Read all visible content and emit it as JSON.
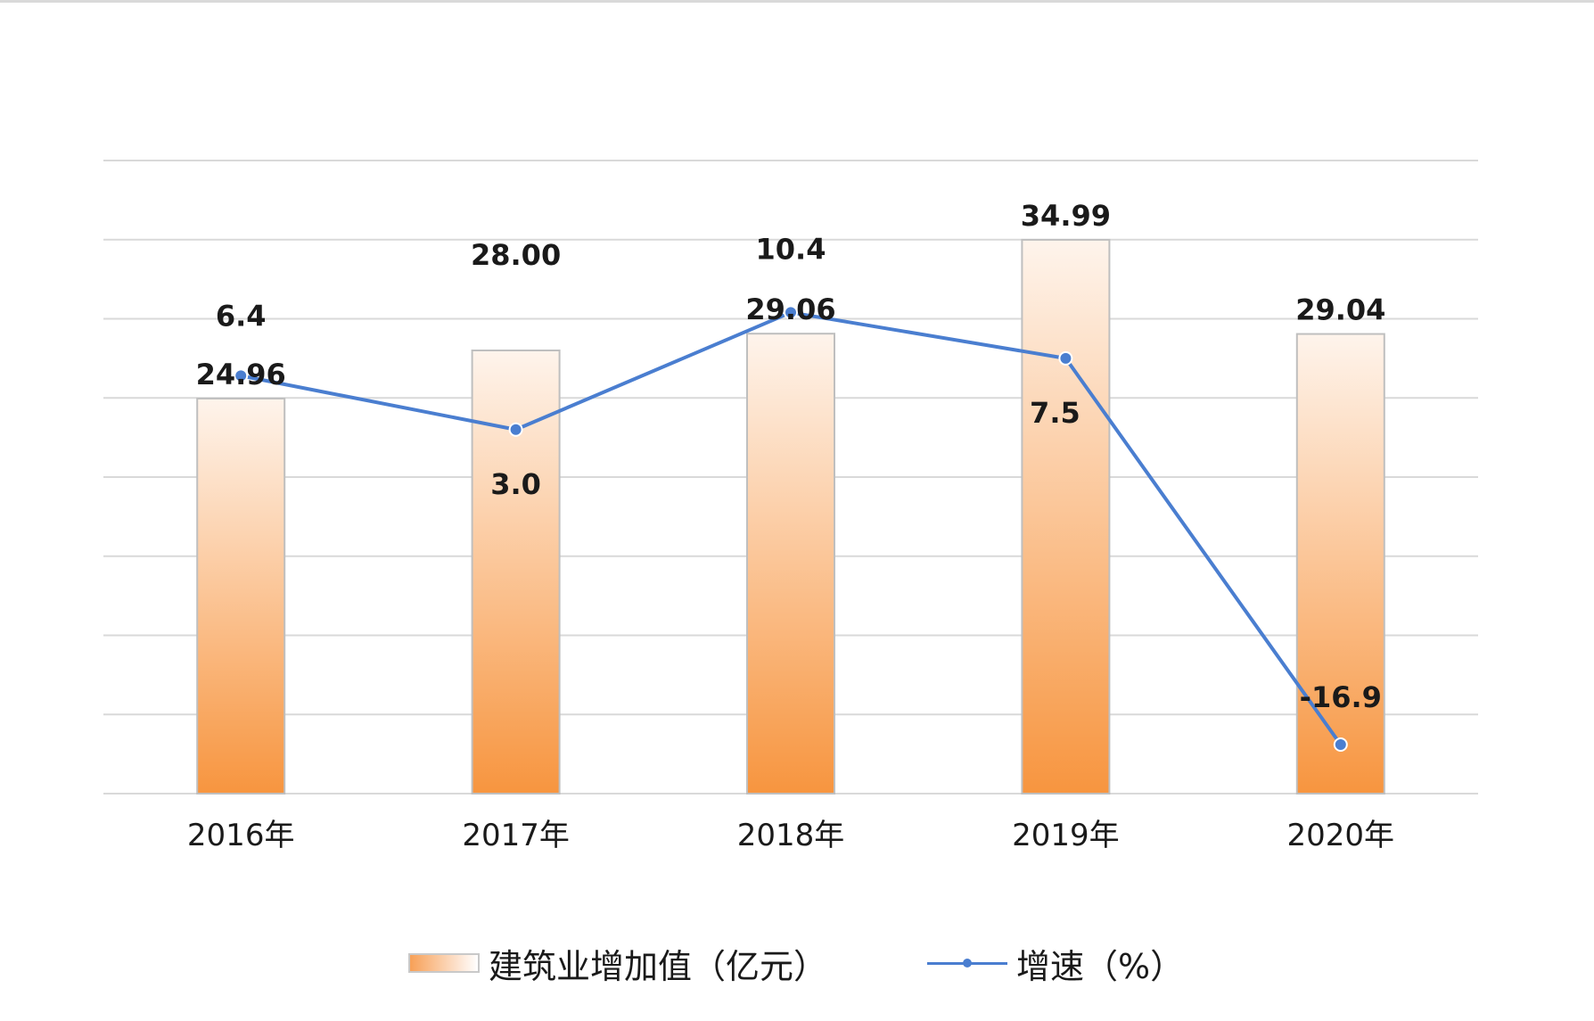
{
  "chart_data": {
    "type": "bar",
    "categories": [
      "2016年",
      "2017年",
      "2018年",
      "2019年",
      "2020年"
    ],
    "series": [
      {
        "name": "建筑业增加值（亿元）",
        "type": "bar",
        "values": [
          24.96,
          28.0,
          29.06,
          34.99,
          29.04
        ],
        "labels": [
          "24.96",
          "28.00",
          "29.06",
          "34.99",
          "29.04"
        ],
        "color": "#f7a057"
      },
      {
        "name": "增速（%）",
        "type": "line",
        "values": [
          6.4,
          3.0,
          10.4,
          7.5,
          -16.9
        ],
        "labels": [
          "6.4",
          "3.0",
          "10.4",
          "7.5",
          "-16.9"
        ],
        "color": "#4a7ed0"
      }
    ],
    "title": "",
    "xlabel": "",
    "ylabel": "",
    "ylim_bar": [
      0,
      40
    ],
    "ylim_line": [
      -20,
      20
    ],
    "grid": true,
    "legend": "bottom-center"
  },
  "colors": {
    "grid": "#d9d9d9",
    "bar_fill_top": "#fde9d9",
    "bar_fill_bottom": "#f7a057",
    "bar_border": "#bfbfbf",
    "line": "#4a7ed0",
    "text": "#1a1a1a"
  }
}
